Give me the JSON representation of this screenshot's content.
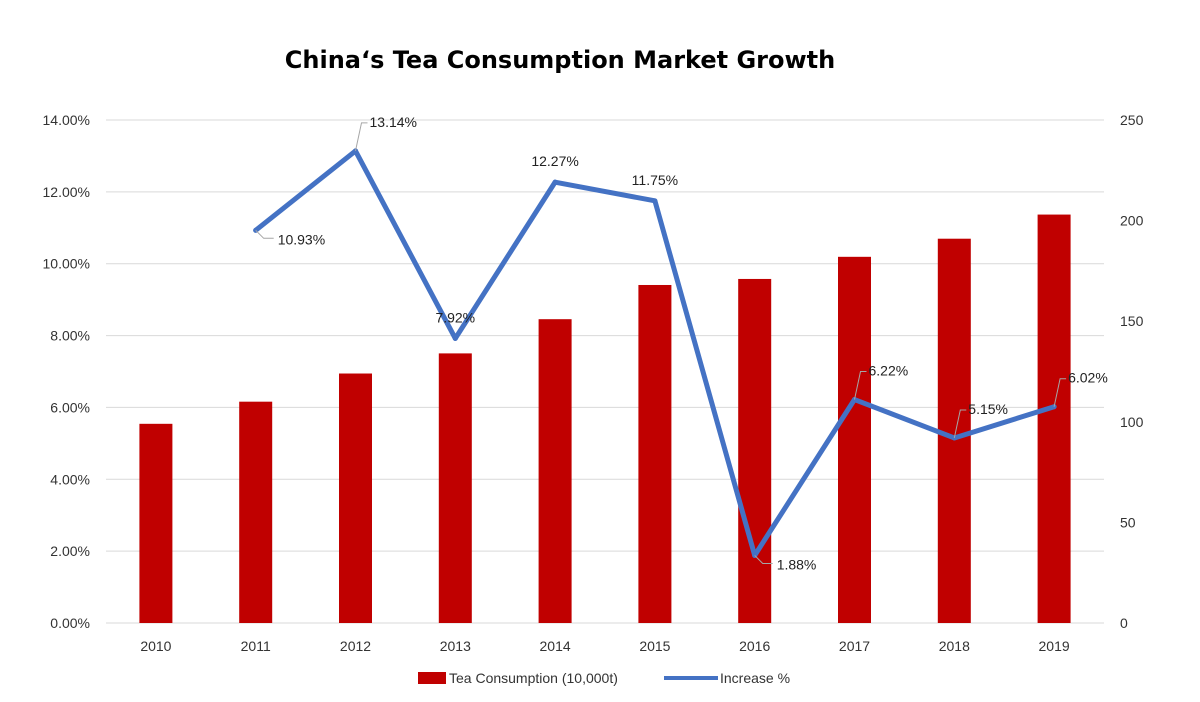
{
  "chart_data": {
    "type": "bar",
    "title": "China‘s Tea Consumption Market Growth",
    "categories": [
      "2010",
      "2011",
      "2012",
      "2013",
      "2014",
      "2015",
      "2016",
      "2017",
      "2018",
      "2019"
    ],
    "series": [
      {
        "name": "Tea Consumption (10,000t)",
        "type": "bar",
        "axis": "right",
        "color": "#C00000",
        "values": [
          99,
          110,
          124,
          134,
          151,
          168,
          171,
          182,
          191,
          203
        ]
      },
      {
        "name": "Increase %",
        "type": "line",
        "axis": "left",
        "color": "#4472C4",
        "values": [
          null,
          10.93,
          13.14,
          7.92,
          12.27,
          11.75,
          1.88,
          6.22,
          5.15,
          6.02
        ],
        "labels": [
          "",
          "10.93%",
          "13.14%",
          "7.92%",
          "12.27%",
          "11.75%",
          "1.88%",
          "6.22%",
          "5.15%",
          "6.02%"
        ]
      }
    ],
    "y_left": {
      "min": 0,
      "max": 14,
      "step": 2,
      "ticks": [
        "0.00%",
        "2.00%",
        "4.00%",
        "6.00%",
        "8.00%",
        "10.00%",
        "12.00%",
        "14.00%"
      ]
    },
    "y_right": {
      "min": 0,
      "max": 250,
      "step": 50,
      "ticks": [
        "0",
        "50",
        "100",
        "150",
        "200",
        "250"
      ]
    },
    "grid": true,
    "legend": "bottom"
  }
}
